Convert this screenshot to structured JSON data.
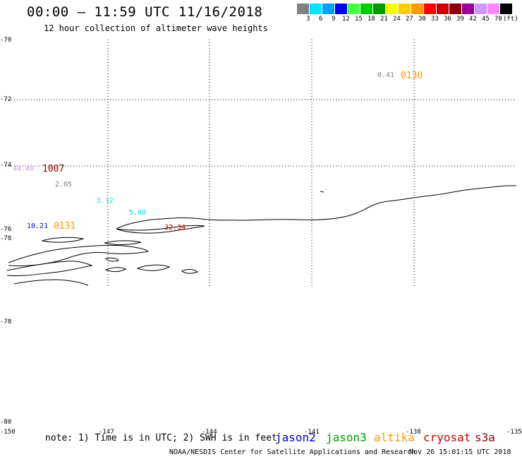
{
  "header": {
    "title": "00:00 — 11:59 UTC 11/16/2018",
    "subtitle": "12 hour collection of altimeter wave heights"
  },
  "colorbar": {
    "colors": [
      "#808080",
      "#00e5ff",
      "#00a0ff",
      "#0000ff",
      "#44ff44",
      "#00cc00",
      "#009900",
      "#ffff00",
      "#ffcc00",
      "#ff9900",
      "#ff0000",
      "#cc0000",
      "#880000",
      "#990099",
      "#cc99ff",
      "#ff88ff",
      "#000000"
    ],
    "labels": [
      "3",
      "6",
      "9",
      "12",
      "15",
      "18",
      "21",
      "24",
      "27",
      "30",
      "33",
      "36",
      "39",
      "42",
      "45",
      "70",
      "(ft)"
    ]
  },
  "axes": {
    "lat_labels": [
      "-70",
      "-72",
      "-74",
      "-76",
      "-78",
      "-78",
      "-80"
    ],
    "lon_labels": [
      "-150",
      "-147",
      "-144",
      "-141",
      "-138",
      "-135"
    ]
  },
  "observations": [
    {
      "text": "0.41",
      "color": "#808080"
    },
    {
      "text": "0130",
      "color": "#ff9900"
    },
    {
      "text": "44.48",
      "color": "#cc99ff"
    },
    {
      "text": "1007",
      "color": "#880000"
    },
    {
      "text": "2.05",
      "color": "#808080"
    },
    {
      "text": "3.12",
      "color": "#00e5ff"
    },
    {
      "text": "5.68",
      "color": "#00e5ff"
    },
    {
      "text": "10.21",
      "color": "#0000ff"
    },
    {
      "text": "0131",
      "color": "#ff9900"
    },
    {
      "text": "32.34",
      "color": "#cc0000"
    }
  ],
  "footer": {
    "note": "note: 1) Time is in UTC; 2) SWH is in feet",
    "satellites": [
      {
        "name": "jason2",
        "color": "#0000cc"
      },
      {
        "name": "jason3",
        "color": "#009900"
      },
      {
        "name": "altika",
        "color": "#ff9900"
      },
      {
        "name": "cryosat",
        "color": "#cc0000"
      },
      {
        "name": "s3a",
        "color": "#880000"
      }
    ],
    "credit": "NOAA/NESDIS Center for Satellite Applications and Research",
    "timestamp": "Nov 26 15:01:15 UTC 2018"
  }
}
